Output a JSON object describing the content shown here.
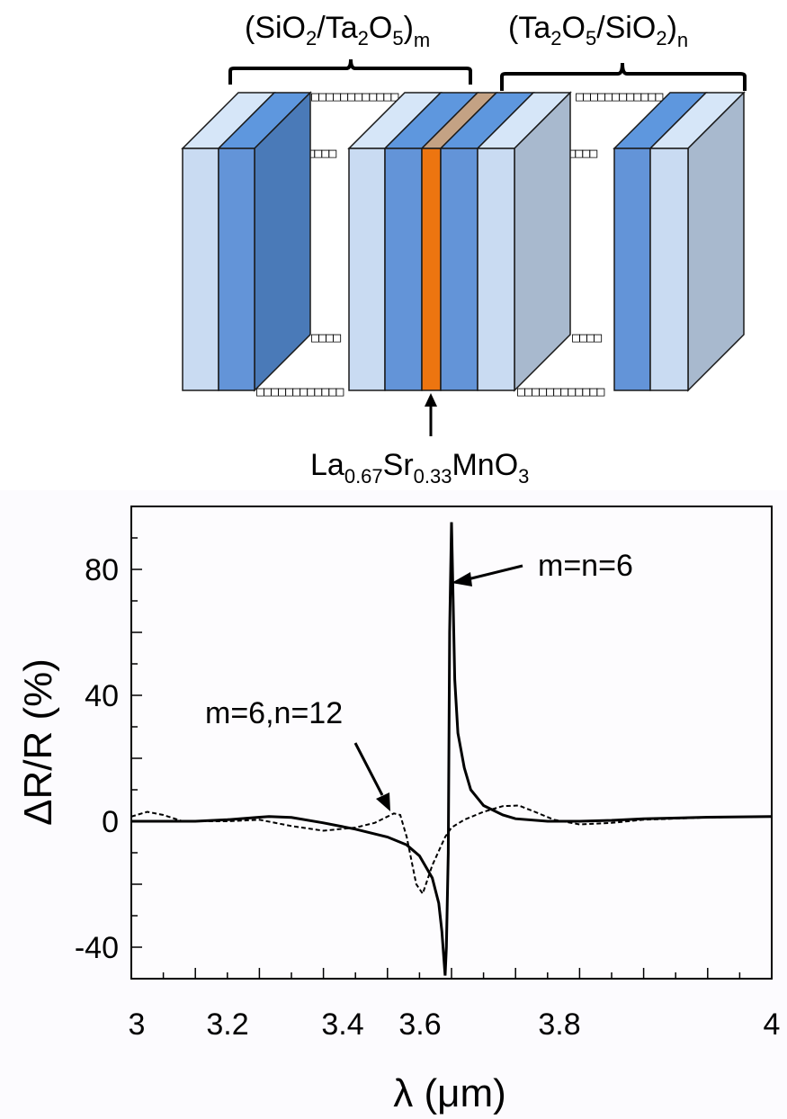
{
  "diagram": {
    "bracket_left_label": {
      "base": "(SiO",
      "s1": "2",
      "mid": "/Ta",
      "s2": "2",
      "mid2": "O",
      "s3": "5",
      "close": ")",
      "sub": "m"
    },
    "bracket_right_label": {
      "base": "(Ta",
      "s1": "2",
      "mid": "O",
      "s2": "5",
      "mid2": "/SiO",
      "s3": "2",
      "close": ")",
      "sub": "n"
    },
    "active_layer_label": {
      "p1": "La",
      "s1": "0.67",
      "p2": "Sr",
      "s2": "0.33",
      "p3": "MnO",
      "s3": "3"
    },
    "colors": {
      "sio2_light": "#C9DBF2",
      "ta2o5_blue": "#6394D8",
      "lsmo_orange": "#ED7510",
      "lsmo_top": "#C4A284",
      "side_dark_blue": "#4A7AB8",
      "side_gray_blue": "#A8B9CE",
      "top_light": "#D6E6F8",
      "top_blue": "#5E97DE"
    },
    "tofu_text": {
      "t1": "□□□□□□□□□□□□",
      "t2": "□□□□□□□□□□□",
      "t3": "□□□□",
      "t4": "□□□□□□□□□□□□",
      "t5": "□□□□□□□□□□□□",
      "t6": "□□□□□□□□□□□",
      "t7": "□□□□",
      "t8": "□□□□□□□□□□□□"
    }
  },
  "chart_data": {
    "type": "line",
    "title": "",
    "xlabel": "λ (μm)",
    "ylabel": "ΔR/R (%)",
    "xlim": [
      3.0,
      4.0
    ],
    "ylim": [
      -50,
      100
    ],
    "xticks": [
      "3",
      "3.2",
      "3.4",
      "3.6",
      "3.8",
      "4"
    ],
    "yticks": [
      "80",
      "40",
      "0",
      "-40"
    ],
    "grid": false,
    "series": [
      {
        "name": "m=n=6",
        "style": "solid",
        "x": [
          3.0,
          3.05,
          3.1,
          3.15,
          3.2,
          3.215,
          3.25,
          3.3,
          3.35,
          3.4,
          3.43,
          3.45,
          3.47,
          3.48,
          3.485,
          3.49,
          3.492,
          3.495,
          3.497,
          3.5,
          3.505,
          3.51,
          3.52,
          3.53,
          3.55,
          3.58,
          3.6,
          3.65,
          3.7,
          3.75,
          3.8,
          3.9,
          4.0
        ],
        "y": [
          0,
          0,
          0,
          0.5,
          1.3,
          1.5,
          1.2,
          -0.5,
          -2.5,
          -5,
          -7.5,
          -11,
          -18,
          -26,
          -35,
          -49,
          -40,
          -10,
          60,
          95,
          45,
          28,
          17,
          10,
          5,
          2,
          0.8,
          0,
          0,
          0.3,
          0.8,
          1.3,
          1.5
        ]
      },
      {
        "name": "m=6,n=12",
        "style": "dashed",
        "x": [
          3.0,
          3.025,
          3.05,
          3.08,
          3.15,
          3.2,
          3.25,
          3.3,
          3.35,
          3.38,
          3.4,
          3.41,
          3.42,
          3.43,
          3.445,
          3.455,
          3.47,
          3.49,
          3.5,
          3.52,
          3.55,
          3.58,
          3.605,
          3.63,
          3.66,
          3.7,
          3.75,
          3.8,
          3.9,
          4.0
        ],
        "y": [
          1.5,
          3,
          2,
          0,
          0,
          0.5,
          -1.5,
          -3,
          -2,
          -0.5,
          1.5,
          2.5,
          2,
          -5,
          -20,
          -23,
          -14,
          -5,
          -2,
          0.5,
          3,
          4.8,
          5,
          3,
          0.5,
          -1,
          -0.5,
          0.5,
          1.2,
          1.5
        ]
      }
    ],
    "annotations": [
      {
        "text": "m=n=6",
        "arrow_to": [
          3.5,
          75
        ]
      },
      {
        "text": "m=6,n=12",
        "arrow_to": [
          3.405,
          2.5
        ]
      }
    ]
  }
}
